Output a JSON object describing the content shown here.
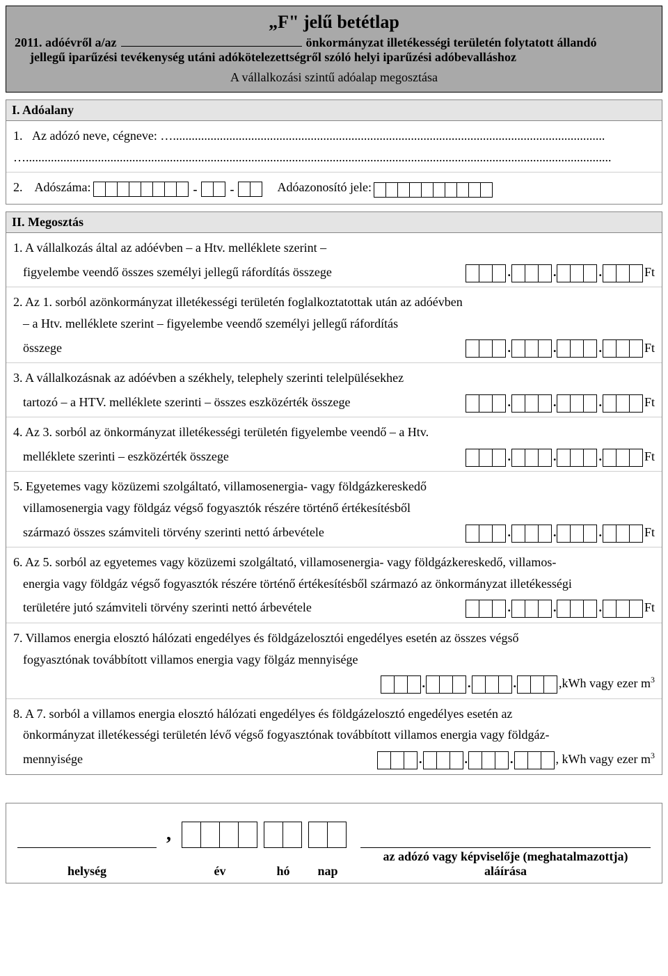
{
  "header": {
    "title": "„F\" jelű betétlap",
    "year_prefix": "2011. adóévről a/az",
    "line1_suffix": "önkormányzat illetékességi területén folytatott állandó",
    "line2": "jellegű iparűzési tevékenység utáni adókötelezettségről szóló helyi iparűzési adóbevalláshoz",
    "subtitle": "A vállalkozási szintű adóalap megosztása"
  },
  "section1": {
    "heading": "I. Adóalany",
    "row1_label": "1.   Az adózó neve, cégneve: …",
    "row2_num": "2.",
    "row2_tax": "Adószáma:",
    "row2_id": "Adóazonosító jele:"
  },
  "section2": {
    "heading": "II. Megosztás",
    "items": [
      {
        "text_a": "1. A vállalkozás által az adóévben – a Htv. melléklete szerint –",
        "text_b": "figyelembe veendő összes személyi jellegű ráfordítás összege",
        "unit": "Ft"
      },
      {
        "text_a": "2. Az 1. sorból azönkormányzat illetékességi területén foglalkoztatottak után az adóévben",
        "text_b": "– a Htv. melléklete szerint – figyelembe veendő személyi jellegű ráfordítás",
        "text_c": "összege",
        "unit": "Ft"
      },
      {
        "text_a": "3. A vállalkozásnak az adóévben a székhely, telephely szerinti telelpülésekhez",
        "text_b": "tartozó – a HTV. melléklete szerinti – összes eszközérték összege",
        "unit": "Ft"
      },
      {
        "text_a": "4. Az 3. sorból az önkormányzat illetékességi területén figyelembe veendő – a Htv.",
        "text_b": "melléklete szerinti – eszközérték összege",
        "unit": "Ft"
      },
      {
        "text_a": "5. Egyetemes vagy közüzemi szolgáltató, villamosenergia- vagy földgázkereskedő",
        "text_b": "villamosenergia vagy földgáz végső fogyasztók részére történő értékesítésből",
        "text_c": "származó összes számviteli törvény szerinti nettó árbevétele",
        "unit": "Ft"
      },
      {
        "text_a": "6. Az 5. sorból az egyetemes vagy közüzemi szolgáltató, villamosenergia- vagy földgázkereskedő, villamos-",
        "text_b": "energia vagy földgáz végső fogyasztók részére történő értékesítésből származó az önkormányzat illetékességi",
        "text_c": "területére jutó számviteli törvény szerinti nettó árbevétele",
        "unit": "Ft"
      },
      {
        "text_a": "7. Villamos energia elosztó hálózati engedélyes és földgázelosztói engedélyes esetén az összes végső",
        "text_b": "fogyasztónak továbbított villamos energia vagy fölgáz mennyisége",
        "unit": ",kWh vagy ezer m",
        "sup": "3",
        "below": true
      },
      {
        "text_a": "8. A 7. sorból a villamos energia elosztó hálózati engedélyes és földgázelosztó engedélyes esetén az",
        "text_b": "önkormányzat illetékességi területén lévő végső fogyasztónak továbbított villamos energia vagy földgáz-",
        "text_c": "mennyisége",
        "unit": ", kWh vagy ezer m",
        "sup": "3"
      }
    ]
  },
  "signature": {
    "place": "helység",
    "year": "év",
    "month": "hó",
    "day": "nap",
    "sign": "az adózó vagy képviselője (meghatalmazottja) aláírása"
  }
}
